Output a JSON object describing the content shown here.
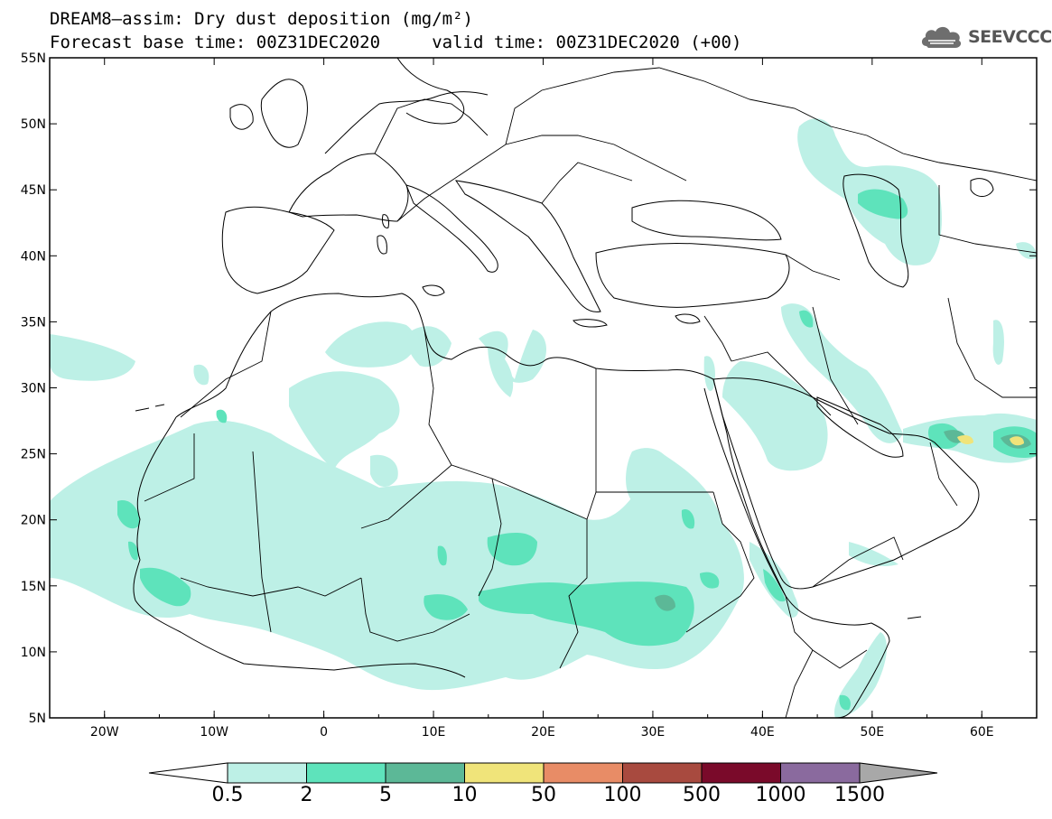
{
  "header": {
    "title_line1": "DREAM8–assim: Dry dust deposition (mg/m²)",
    "title_line2": "Forecast base time: 00Z31DEC2020     valid time: 00Z31DEC2020 (+00)",
    "logo_text": "SEEVCCC"
  },
  "map": {
    "lon_range": [
      -25,
      65
    ],
    "lat_range": [
      5,
      55
    ],
    "lat_ticks": [
      {
        "value": 55,
        "label": "55N"
      },
      {
        "value": 50,
        "label": "50N"
      },
      {
        "value": 45,
        "label": "45N"
      },
      {
        "value": 40,
        "label": "40N"
      },
      {
        "value": 35,
        "label": "35N"
      },
      {
        "value": 30,
        "label": "30N"
      },
      {
        "value": 25,
        "label": "25N"
      },
      {
        "value": 20,
        "label": "20N"
      },
      {
        "value": 15,
        "label": "15N"
      },
      {
        "value": 10,
        "label": "10N"
      },
      {
        "value": 5,
        "label": "5N"
      }
    ],
    "lon_ticks": [
      {
        "value": -20,
        "label": "20W"
      },
      {
        "value": -10,
        "label": "10W"
      },
      {
        "value": 0,
        "label": "0"
      },
      {
        "value": 10,
        "label": "10E"
      },
      {
        "value": 20,
        "label": "20E"
      },
      {
        "value": 30,
        "label": "30E"
      },
      {
        "value": 40,
        "label": "40E"
      },
      {
        "value": 50,
        "label": "50E"
      },
      {
        "value": 60,
        "label": "60E"
      }
    ]
  },
  "colorbar": {
    "below_color": "#ffffff",
    "above_color": "#a8a8a8",
    "bins": [
      {
        "color": "#bdf0e6"
      },
      {
        "color": "#5ee3bb"
      },
      {
        "color": "#5cb897"
      },
      {
        "color": "#f0e47a"
      },
      {
        "color": "#e88c66"
      },
      {
        "color": "#a84a3f"
      },
      {
        "color": "#7a0a2a"
      },
      {
        "color": "#8a6a9e"
      }
    ],
    "labels": [
      "0.5",
      "2",
      "5",
      "10",
      "50",
      "100",
      "500",
      "1000",
      "1500"
    ]
  },
  "dust_levels": {
    "level1": "#bdf0e6",
    "level2": "#5ee3bb",
    "level3": "#5cb897",
    "level4": "#f0e47a"
  }
}
